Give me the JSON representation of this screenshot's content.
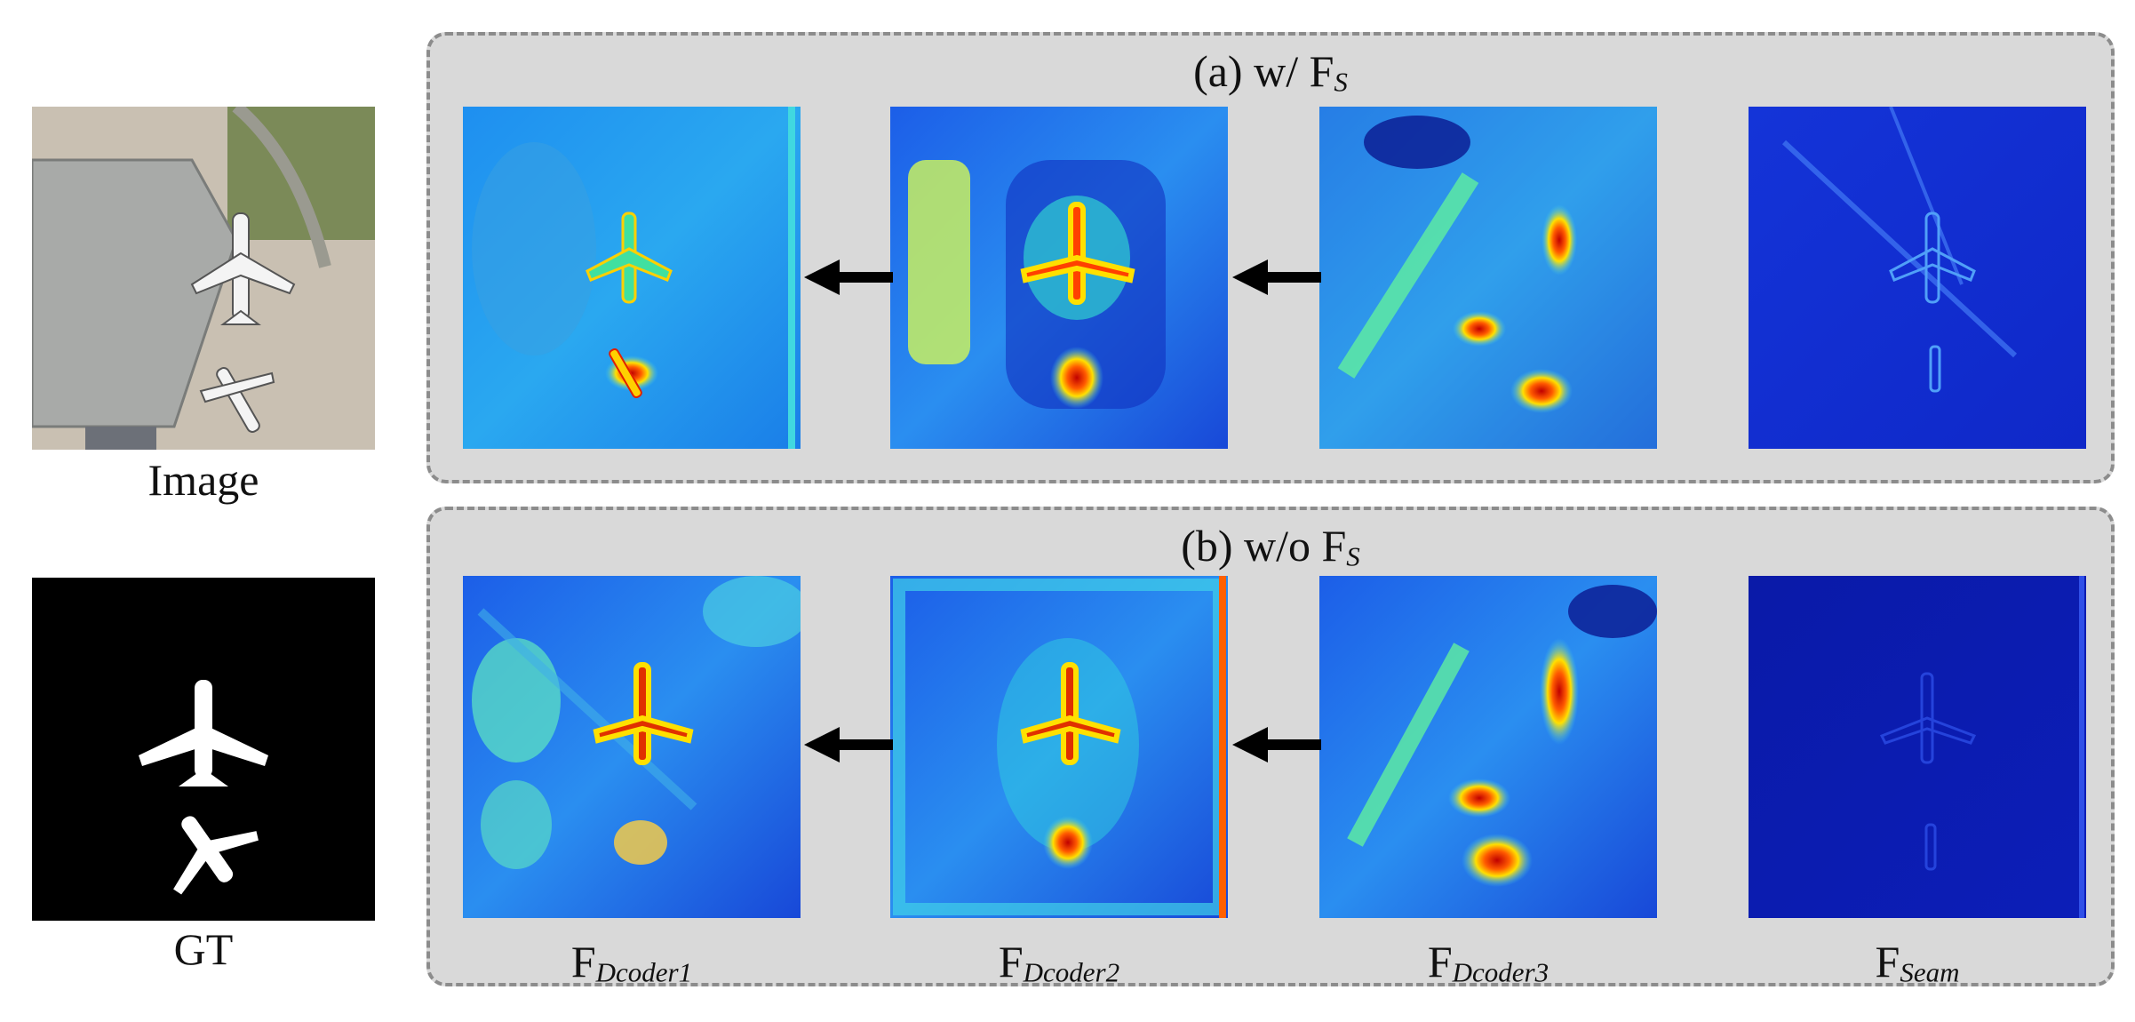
{
  "left": {
    "image_caption": "Image",
    "gt_caption": "GT"
  },
  "panels": {
    "a": {
      "title_main": "(a) w/ F",
      "title_sub": "S"
    },
    "b": {
      "title_main": "(b) w/o F",
      "title_sub": "S"
    }
  },
  "columns": [
    {
      "main": "F",
      "sub": "Dcoder1"
    },
    {
      "main": "F",
      "sub": "Dcoder2"
    },
    {
      "main": "F",
      "sub": "Dcoder3"
    },
    {
      "main": "F",
      "sub": "Seam"
    }
  ],
  "colors": {
    "panel_bg": "#d9d9d9",
    "panel_border": "#8c8c8c",
    "jet_low": "#0a1fd0",
    "jet_mid": "#28c8e8",
    "jet_high": "#e82010"
  }
}
